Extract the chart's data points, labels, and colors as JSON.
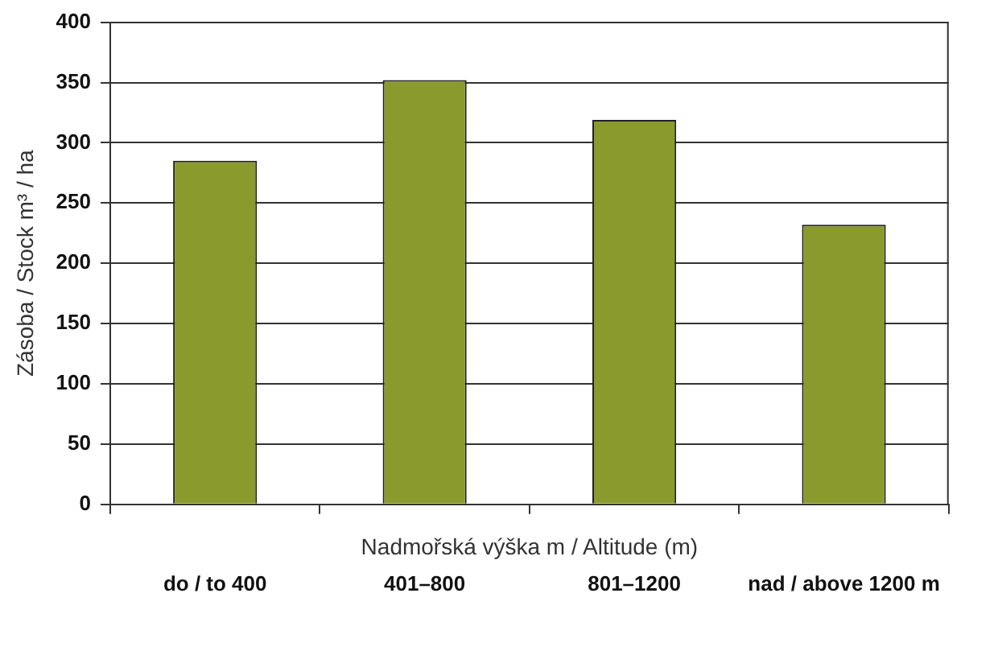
{
  "chart_data": {
    "type": "bar",
    "xlabel": "Nadmořská výška m / Altitude (m)",
    "ylabel": "Zásoba / Stock m³ / ha",
    "categories": [
      "do / to 400",
      "401–800",
      "801–1200",
      "nad / above 1200 m"
    ],
    "values": [
      285,
      352,
      319,
      232
    ],
    "color": "#8a9a2c",
    "ylim": [
      0,
      400
    ],
    "yticks": [
      0,
      50,
      100,
      150,
      200,
      250,
      300,
      350,
      400
    ],
    "grid": "y",
    "legend": false
  }
}
